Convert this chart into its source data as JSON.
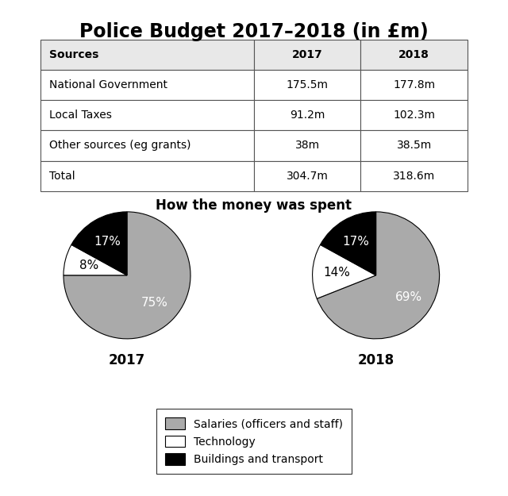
{
  "title": "Police Budget 2017–2018 (in £m)",
  "table_headers": [
    "Sources",
    "2017",
    "2018"
  ],
  "table_rows": [
    [
      "National Government",
      "175.5m",
      "177.8m"
    ],
    [
      "Local Taxes",
      "91.2m",
      "102.3m"
    ],
    [
      "Other sources (eg grants)",
      "38m",
      "38.5m"
    ],
    [
      "Total",
      "304.7m",
      "318.6m"
    ]
  ],
  "pie_title": "How the money was spent",
  "pie_2017": {
    "label": "2017",
    "slices": [
      75,
      8,
      17
    ],
    "colors": [
      "#aaaaaa",
      "#ffffff",
      "#000000"
    ],
    "labels": [
      "75%",
      "8%",
      "17%"
    ],
    "label_colors": [
      "white",
      "black",
      "white"
    ]
  },
  "pie_2018": {
    "label": "2018",
    "slices": [
      69,
      14,
      17
    ],
    "colors": [
      "#aaaaaa",
      "#ffffff",
      "#000000"
    ],
    "labels": [
      "69%",
      "14%",
      "17%"
    ],
    "label_colors": [
      "white",
      "black",
      "white"
    ]
  },
  "legend_labels": [
    "Salaries (officers and staff)",
    "Technology",
    "Buildings and transport"
  ],
  "legend_colors": [
    "#aaaaaa",
    "#ffffff",
    "#000000"
  ],
  "bg_color": "#ffffff",
  "title_fontsize": 17,
  "pie_title_fontsize": 12,
  "pie_label_fontsize": 11,
  "pie_year_fontsize": 12,
  "table_fontsize": 10
}
